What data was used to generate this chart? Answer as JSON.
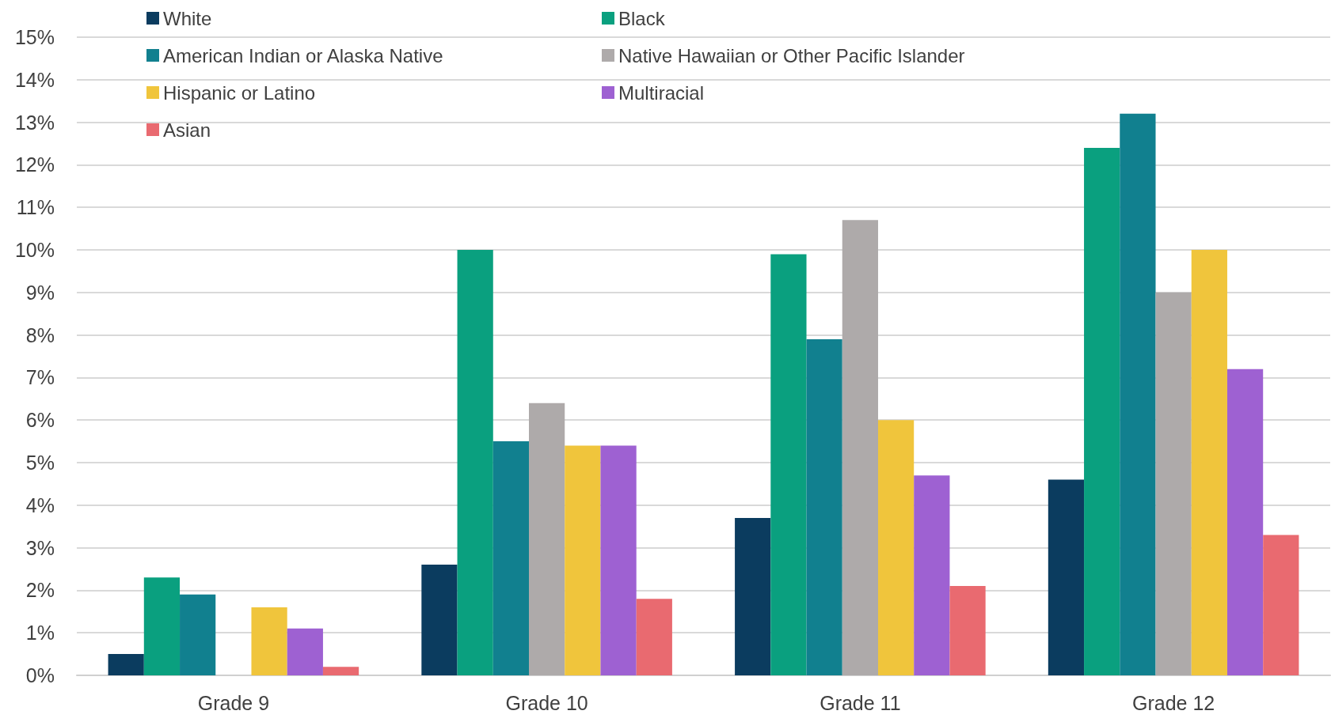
{
  "chart_data": {
    "type": "bar",
    "categories": [
      "Grade 9",
      "Grade 10",
      "Grade 11",
      "Grade 12"
    ],
    "series": [
      {
        "name": "White",
        "color": "#0b3c5f",
        "values": [
          0.5,
          2.6,
          3.7,
          4.6
        ]
      },
      {
        "name": "Black",
        "color": "#0aa07f",
        "values": [
          2.3,
          10.0,
          9.9,
          12.4
        ]
      },
      {
        "name": "American Indian or Alaska Native",
        "color": "#11808f",
        "values": [
          1.9,
          5.5,
          7.9,
          13.2
        ]
      },
      {
        "name": "Native Hawaiian or Other Pacific Islander",
        "color": "#aeaaaa",
        "values": [
          null,
          6.4,
          10.7,
          9.0
        ]
      },
      {
        "name": "Hispanic or Latino",
        "color": "#f0c53c",
        "values": [
          1.6,
          5.4,
          6.0,
          10.0
        ]
      },
      {
        "name": "Multiracial",
        "color": "#9e61d2",
        "values": [
          1.1,
          5.4,
          4.7,
          7.2
        ]
      },
      {
        "name": "Asian",
        "color": "#e96a70",
        "values": [
          0.2,
          1.8,
          2.1,
          3.3
        ]
      }
    ],
    "ylim": [
      0,
      15
    ],
    "yticks": [
      {
        "value": 0,
        "label": "0%"
      },
      {
        "value": 1,
        "label": "1%"
      },
      {
        "value": 2,
        "label": "2%"
      },
      {
        "value": 3,
        "label": "3%"
      },
      {
        "value": 4,
        "label": "4%"
      },
      {
        "value": 5,
        "label": "5%"
      },
      {
        "value": 6,
        "label": "6%"
      },
      {
        "value": 7,
        "label": "7%"
      },
      {
        "value": 8,
        "label": "8%"
      },
      {
        "value": 9,
        "label": "9%"
      },
      {
        "value": 10,
        "label": "10%"
      },
      {
        "value": 11,
        "label": "11%"
      },
      {
        "value": 12,
        "label": "12%"
      },
      {
        "value": 13,
        "label": "13%"
      },
      {
        "value": 14,
        "label": "14%"
      },
      {
        "value": 15,
        "label": "15%"
      }
    ],
    "grid": "y",
    "legend": "top left"
  }
}
